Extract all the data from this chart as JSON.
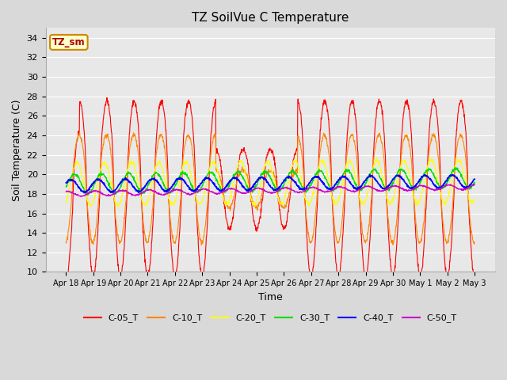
{
  "title": "TZ SoilVue C Temperature",
  "xlabel": "Time",
  "ylabel": "Soil Temperature (C)",
  "annotation": "TZ_sm",
  "ylim": [
    10,
    35
  ],
  "yticks": [
    10,
    12,
    14,
    16,
    18,
    20,
    22,
    24,
    26,
    28,
    30,
    32,
    34
  ],
  "fig_bg_color": "#d9d9d9",
  "plot_bg_color": "#e8e8e8",
  "grid_color": "#ffffff",
  "series_colors": {
    "C-05_T": "#ff0000",
    "C-10_T": "#ff8800",
    "C-20_T": "#ffff00",
    "C-30_T": "#00dd00",
    "C-40_T": "#0000ff",
    "C-50_T": "#cc00cc"
  },
  "xtick_labels": [
    "Apr 18",
    "Apr 19",
    "Apr 20",
    "Apr 21",
    "Apr 22",
    "Apr 23",
    "Apr 24",
    "Apr 25",
    "Apr 26",
    "Apr 27",
    "Apr 28",
    "Apr 29",
    "Apr 30",
    "May 1",
    "May 2",
    "May 3"
  ],
  "n_points": 1440
}
